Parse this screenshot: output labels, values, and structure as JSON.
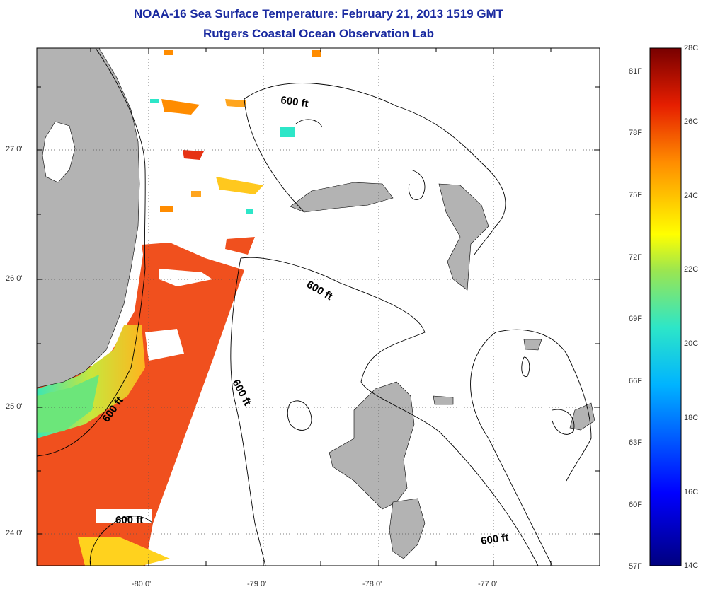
{
  "title": "NOAA-16 Sea Surface Temperature:  February 21, 2013 1519 GMT",
  "subtitle": "Rutgers Coastal Ocean Observation Lab",
  "axes": {
    "lat_labels": [
      "27 0'",
      "26 0'",
      "25 0'",
      "24 0'"
    ],
    "lon_labels": [
      "-80 0'",
      "-79 0'",
      "-78 0'",
      "-77 0'"
    ]
  },
  "contour_labels": [
    "600 ft",
    "600 ft",
    "600 ft",
    "600 ft",
    "600 ft",
    "600 ft"
  ],
  "colorbar": {
    "celsius": [
      "28C",
      "26C",
      "24C",
      "22C",
      "20C",
      "18C",
      "16C",
      "14C"
    ],
    "fahrenheit": [
      "81F",
      "78F",
      "75F",
      "72F",
      "69F",
      "66F",
      "63F",
      "60F",
      "57F"
    ],
    "min_c": 14,
    "max_c": 28
  },
  "colors": {
    "title": "#1a2aa0",
    "land": "#b3b3b3",
    "sst_warm": "#f0501e",
    "sst_cool": "#ffd21e",
    "sst_cold": "#32e6c8"
  }
}
